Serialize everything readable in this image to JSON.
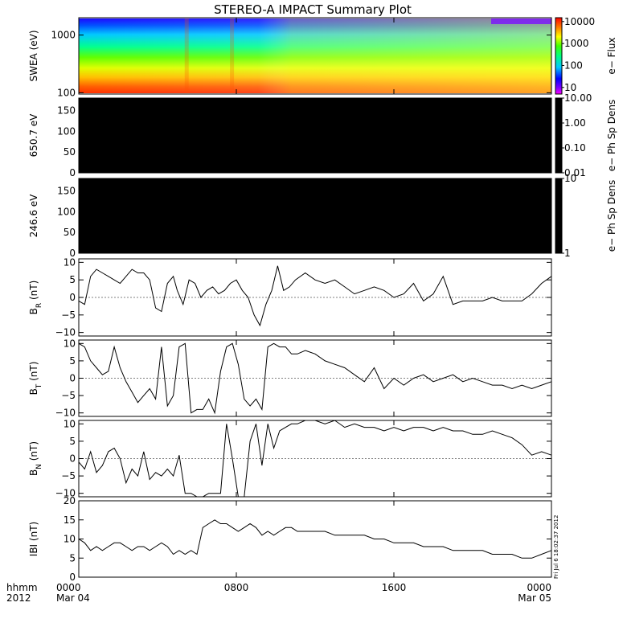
{
  "title": "STEREO-A IMPACT Summary Plot",
  "timestamp": "Fri Jul  6 18:02:37 2012",
  "x_axis": {
    "row1_label": "hhmm",
    "row2_label": "2012",
    "ticks": [
      {
        "hour": 0,
        "top": "0000",
        "bottom": "Mar 04"
      },
      {
        "hour": 8,
        "top": "0800",
        "bottom": ""
      },
      {
        "hour": 16,
        "top": "1600",
        "bottom": ""
      },
      {
        "hour": 24,
        "top": "0000",
        "bottom": "Mar 05"
      }
    ]
  },
  "chart_data": [
    {
      "type": "heatmap",
      "ylabel": "SWEA (eV)",
      "ylog": true,
      "ylim": [
        95,
        2000
      ],
      "yticks": [
        {
          "v": 100,
          "t": "100"
        },
        {
          "v": 1000,
          "t": "1000"
        }
      ],
      "colorbar": {
        "label": "e− Flux",
        "log": true,
        "range": [
          5,
          15000
        ],
        "ticks": [
          {
            "v": 10,
            "t": "10"
          },
          {
            "v": 100,
            "t": "100"
          },
          {
            "v": 1000,
            "t": "1000"
          },
          {
            "v": 10000,
            "t": "10000"
          }
        ]
      },
      "description": "Electron flux spectrogram, high flux at low energies, enhancement near 05:40 and 08:00",
      "enhancements_hours": [
        5.5,
        7.8
      ]
    },
    {
      "type": "heatmap",
      "ylabel": "650.7 eV",
      "ylim": [
        0,
        180
      ],
      "yticks": [
        {
          "v": 0,
          "t": "0"
        },
        {
          "v": 50,
          "t": "50"
        },
        {
          "v": 100,
          "t": "100"
        },
        {
          "v": 150,
          "t": "150"
        }
      ],
      "fill": "#000000",
      "colorbar": {
        "label": "e− Ph Sp Dens",
        "log": true,
        "range": [
          0.01,
          10
        ],
        "ticks": [
          {
            "v": 0.01,
            "t": "0.01"
          },
          {
            "v": 0.1,
            "t": "0.10"
          },
          {
            "v": 1,
            "t": "1.00"
          },
          {
            "v": 10,
            "t": "10.00"
          }
        ]
      }
    },
    {
      "type": "heatmap",
      "ylabel": "246.6 eV",
      "ylim": [
        0,
        180
      ],
      "yticks": [
        {
          "v": 0,
          "t": "0"
        },
        {
          "v": 50,
          "t": "50"
        },
        {
          "v": 100,
          "t": "100"
        },
        {
          "v": 150,
          "t": "150"
        }
      ],
      "fill": "#000000",
      "colorbar": {
        "label": "e− Ph Sp Dens",
        "log": true,
        "range": [
          1,
          10
        ],
        "ticks": [
          {
            "v": 1,
            "t": "1"
          },
          {
            "v": 10,
            "t": "10"
          }
        ]
      }
    },
    {
      "type": "line",
      "ylabel": "B",
      "ysub": "R",
      "yunit": "(nT)",
      "ylim": [
        -11,
        11
      ],
      "yticks": [
        {
          "v": -10,
          "t": "−10"
        },
        {
          "v": -5,
          "t": "−5"
        },
        {
          "v": 0,
          "t": "0"
        },
        {
          "v": 5,
          "t": "5"
        },
        {
          "v": 10,
          "t": "10"
        }
      ],
      "x": [
        0,
        0.3,
        0.6,
        0.9,
        1.2,
        1.5,
        1.8,
        2.1,
        2.4,
        2.7,
        3.0,
        3.3,
        3.6,
        3.9,
        4.2,
        4.5,
        4.8,
        5.0,
        5.3,
        5.6,
        5.9,
        6.2,
        6.5,
        6.8,
        7.1,
        7.4,
        7.7,
        8.0,
        8.3,
        8.6,
        8.9,
        9.2,
        9.5,
        9.8,
        10.1,
        10.4,
        10.7,
        11.0,
        11.5,
        12.0,
        12.5,
        13.0,
        13.5,
        14.0,
        14.5,
        15.0,
        15.5,
        16.0,
        16.5,
        17.0,
        17.5,
        18.0,
        18.5,
        19.0,
        19.5,
        20.0,
        20.5,
        21.0,
        21.5,
        22.0,
        22.5,
        23.0,
        23.5,
        24.0
      ],
      "y": [
        -1,
        -2,
        6,
        8,
        7,
        6,
        5,
        4,
        6,
        8,
        7,
        7,
        5,
        -3,
        -4,
        4,
        6,
        2,
        -2,
        5,
        4,
        0,
        2,
        3,
        1,
        2,
        4,
        5,
        2,
        0,
        -5,
        -8,
        -2,
        2,
        9,
        2,
        3,
        5,
        7,
        5,
        4,
        5,
        3,
        1,
        2,
        3,
        2,
        0,
        1,
        4,
        -1,
        1,
        6,
        -2,
        -1,
        -1,
        -1,
        0,
        -1,
        -1,
        -1,
        1,
        4,
        6
      ]
    },
    {
      "type": "line",
      "ylabel": "B",
      "ysub": "T",
      "yunit": "(nT)",
      "ylim": [
        -11,
        11
      ],
      "yticks": [
        {
          "v": -10,
          "t": "−10"
        },
        {
          "v": -5,
          "t": "−5"
        },
        {
          "v": 0,
          "t": "0"
        },
        {
          "v": 5,
          "t": "5"
        },
        {
          "v": 10,
          "t": "10"
        }
      ],
      "x": [
        0,
        0.3,
        0.6,
        0.9,
        1.2,
        1.5,
        1.8,
        2.1,
        2.4,
        2.7,
        3.0,
        3.3,
        3.6,
        3.9,
        4.2,
        4.5,
        4.8,
        5.1,
        5.4,
        5.7,
        6.0,
        6.3,
        6.6,
        6.9,
        7.2,
        7.5,
        7.8,
        8.1,
        8.4,
        8.7,
        9.0,
        9.3,
        9.6,
        9.9,
        10.2,
        10.5,
        10.8,
        11.1,
        11.5,
        12.0,
        12.5,
        13.0,
        13.5,
        14.0,
        14.5,
        15.0,
        15.5,
        16.0,
        16.5,
        17.0,
        17.5,
        18.0,
        18.5,
        19.0,
        19.5,
        20.0,
        20.5,
        21.0,
        21.5,
        22.0,
        22.5,
        23.0,
        23.5,
        24.0
      ],
      "y": [
        10,
        9,
        5,
        3,
        1,
        2,
        9,
        3,
        -1,
        -4,
        -7,
        -5,
        -3,
        -6,
        9,
        -8,
        -5,
        9,
        10,
        -10,
        -9,
        -9,
        -6,
        -10,
        2,
        9,
        10,
        4,
        -6,
        -8,
        -6,
        -9,
        9,
        10,
        9,
        9,
        7,
        7,
        8,
        7,
        5,
        4,
        3,
        1,
        -1,
        3,
        -3,
        0,
        -2,
        0,
        1,
        -1,
        0,
        1,
        -1,
        0,
        -1,
        -2,
        -2,
        -3,
        -2,
        -3,
        -2,
        -1
      ]
    },
    {
      "type": "line",
      "ylabel": "B",
      "ysub": "N",
      "yunit": "(nT)",
      "ylim": [
        -11,
        11
      ],
      "yticks": [
        {
          "v": -10,
          "t": "−10"
        },
        {
          "v": -5,
          "t": "−5"
        },
        {
          "v": 0,
          "t": "0"
        },
        {
          "v": 5,
          "t": "5"
        },
        {
          "v": 10,
          "t": "10"
        }
      ],
      "x": [
        0,
        0.3,
        0.6,
        0.9,
        1.2,
        1.5,
        1.8,
        2.1,
        2.4,
        2.7,
        3.0,
        3.3,
        3.6,
        3.9,
        4.2,
        4.5,
        4.8,
        5.1,
        5.4,
        5.7,
        6.0,
        6.3,
        6.6,
        6.9,
        7.2,
        7.5,
        7.8,
        8.1,
        8.4,
        8.7,
        9.0,
        9.3,
        9.6,
        9.9,
        10.2,
        10.5,
        10.8,
        11.1,
        11.5,
        12.0,
        12.5,
        13.0,
        13.5,
        14.0,
        14.5,
        15.0,
        15.5,
        16.0,
        16.5,
        17.0,
        17.5,
        18.0,
        18.5,
        19.0,
        19.5,
        20.0,
        20.5,
        21.0,
        21.5,
        22.0,
        22.5,
        23.0,
        23.5,
        24.0
      ],
      "y": [
        -1,
        -3,
        2,
        -4,
        -2,
        2,
        3,
        0,
        -7,
        -3,
        -5,
        2,
        -6,
        -4,
        -5,
        -3,
        -5,
        1,
        -10,
        -10,
        -11,
        -11,
        -10,
        -10,
        -10,
        10,
        0,
        -11,
        -11,
        5,
        10,
        -2,
        10,
        3,
        8,
        9,
        10,
        10,
        11,
        11,
        10,
        11,
        9,
        10,
        9,
        9,
        8,
        9,
        8,
        9,
        9,
        8,
        9,
        8,
        8,
        7,
        7,
        8,
        7,
        6,
        4,
        1,
        2,
        1
      ]
    },
    {
      "type": "line",
      "ylabel": "IBI",
      "yunit": "(nT)",
      "ylim": [
        0,
        20
      ],
      "yticks": [
        {
          "v": 0,
          "t": "0"
        },
        {
          "v": 5,
          "t": "5"
        },
        {
          "v": 10,
          "t": "10"
        },
        {
          "v": 15,
          "t": "15"
        },
        {
          "v": 20,
          "t": "20"
        }
      ],
      "x": [
        0,
        0.3,
        0.6,
        0.9,
        1.2,
        1.5,
        1.8,
        2.1,
        2.4,
        2.7,
        3.0,
        3.3,
        3.6,
        3.9,
        4.2,
        4.5,
        4.8,
        5.1,
        5.4,
        5.7,
        6.0,
        6.3,
        6.6,
        6.9,
        7.2,
        7.5,
        7.8,
        8.1,
        8.4,
        8.7,
        9.0,
        9.3,
        9.6,
        9.9,
        10.2,
        10.5,
        10.8,
        11.1,
        11.5,
        12.0,
        12.5,
        13.0,
        13.5,
        14.0,
        14.5,
        15.0,
        15.5,
        16.0,
        16.5,
        17.0,
        17.5,
        18.0,
        18.5,
        19.0,
        19.5,
        20.0,
        20.5,
        21.0,
        21.5,
        22.0,
        22.5,
        23.0,
        23.5,
        24.0
      ],
      "y": [
        10,
        9,
        7,
        8,
        7,
        8,
        9,
        9,
        8,
        7,
        8,
        8,
        7,
        8,
        9,
        8,
        6,
        7,
        6,
        7,
        6,
        13,
        14,
        15,
        14,
        14,
        13,
        12,
        13,
        14,
        13,
        11,
        12,
        11,
        12,
        13,
        13,
        12,
        12,
        12,
        12,
        11,
        11,
        11,
        11,
        10,
        10,
        9,
        9,
        9,
        8,
        8,
        8,
        7,
        7,
        7,
        7,
        6,
        6,
        6,
        5,
        5,
        6,
        7
      ]
    }
  ]
}
